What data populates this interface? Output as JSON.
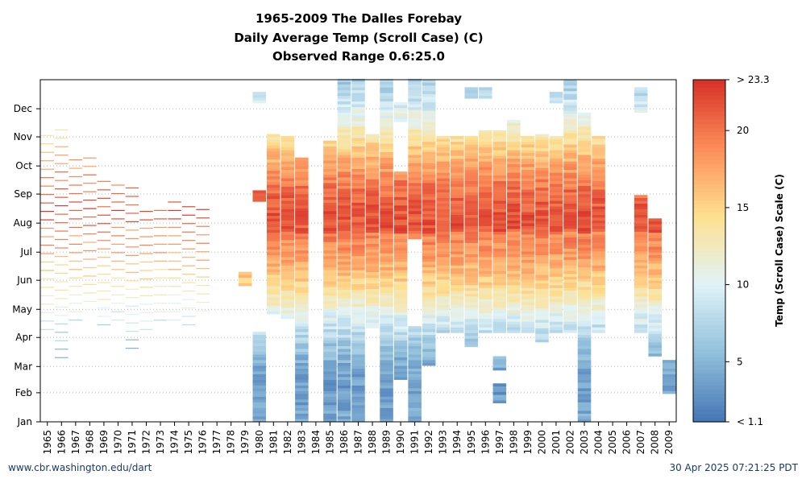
{
  "chart_data": {
    "type": "heatmap",
    "title_lines": [
      "1965-2009 The Dalles Forebay",
      "Daily Average Temp (Scroll Case) (C)",
      "Observed Range 0.6:25.0"
    ],
    "xlabel": "",
    "ylabel": "",
    "x_categories": [
      "1965",
      "1966",
      "1967",
      "1968",
      "1969",
      "1970",
      "1971",
      "1972",
      "1973",
      "1974",
      "1975",
      "1976",
      "1977",
      "1978",
      "1979",
      "1980",
      "1981",
      "1982",
      "1983",
      "1984",
      "1985",
      "1986",
      "1987",
      "1988",
      "1989",
      "1990",
      "1991",
      "1992",
      "1993",
      "1994",
      "1995",
      "1996",
      "1997",
      "1998",
      "1999",
      "2000",
      "2001",
      "2002",
      "2003",
      "2004",
      "2005",
      "2006",
      "2007",
      "2008",
      "2009"
    ],
    "y_ticks": [
      "Jan",
      "Feb",
      "Mar",
      "Apr",
      "May",
      "Jun",
      "Jul",
      "Aug",
      "Sep",
      "Oct",
      "Nov",
      "Dec"
    ],
    "colorbar": {
      "title": "Temp (Scroll Case) Scale (C)",
      "range": [
        1.1,
        23.3
      ],
      "tick_labels": [
        "> 23.3",
        "20",
        "15",
        "10",
        "5",
        "< 1.1"
      ],
      "tick_values": [
        23.3,
        20,
        15,
        10,
        5,
        1.1
      ],
      "colors": [
        "#4575b4",
        "#91bfdb",
        "#e0f3f8",
        "#fee090",
        "#fc8d59",
        "#d73027"
      ]
    },
    "grid": true,
    "year_coverage_days": [
      {
        "year": "1965",
        "segments": [
          [
            90,
            300
          ]
        ],
        "mode": "sparse"
      },
      {
        "year": "1966",
        "segments": [
          [
            60,
            310
          ]
        ],
        "mode": "sparse"
      },
      {
        "year": "1967",
        "segments": [
          [
            100,
            280
          ]
        ],
        "mode": "sparse"
      },
      {
        "year": "1968",
        "segments": [
          [
            120,
            275
          ]
        ],
        "mode": "sparse"
      },
      {
        "year": "1969",
        "segments": [
          [
            95,
            250
          ]
        ],
        "mode": "sparse"
      },
      {
        "year": "1970",
        "segments": [
          [
            100,
            250
          ]
        ],
        "mode": "sparse"
      },
      {
        "year": "1971",
        "segments": [
          [
            70,
            250
          ]
        ],
        "mode": "sparse"
      },
      {
        "year": "1972",
        "segments": [
          [
            90,
            225
          ]
        ],
        "mode": "sparse"
      },
      {
        "year": "1973",
        "segments": [
          [
            100,
            225
          ]
        ],
        "mode": "sparse"
      },
      {
        "year": "1974",
        "segments": [
          [
            100,
            235
          ]
        ],
        "mode": "sparse"
      },
      {
        "year": "1975",
        "segments": [
          [
            95,
            225
          ]
        ],
        "mode": "sparse"
      },
      {
        "year": "1976",
        "segments": [
          [
            110,
            225
          ]
        ],
        "mode": "sparse"
      },
      {
        "year": "1979",
        "segments": [
          [
            145,
            160
          ]
        ],
        "mode": "full"
      },
      {
        "year": "1980",
        "segments": [
          [
            0,
            95
          ],
          [
            235,
            245
          ],
          [
            340,
            350
          ]
        ],
        "mode": "full"
      },
      {
        "year": "1981",
        "segments": [
          [
            115,
            305
          ]
        ],
        "mode": "full"
      },
      {
        "year": "1982",
        "segments": [
          [
            110,
            305
          ]
        ],
        "mode": "full"
      },
      {
        "year": "1983",
        "segments": [
          [
            0,
            280
          ]
        ],
        "mode": "full"
      },
      {
        "year": "1985",
        "segments": [
          [
            0,
            300
          ]
        ],
        "mode": "full"
      },
      {
        "year": "1986",
        "segments": [
          [
            0,
            365
          ]
        ],
        "mode": "full"
      },
      {
        "year": "1987",
        "segments": [
          [
            0,
            365
          ]
        ],
        "mode": "full"
      },
      {
        "year": "1988",
        "segments": [
          [
            100,
            305
          ]
        ],
        "mode": "full"
      },
      {
        "year": "1989",
        "segments": [
          [
            0,
            365
          ]
        ],
        "mode": "full"
      },
      {
        "year": "1990",
        "segments": [
          [
            45,
            265
          ],
          [
            320,
            340
          ]
        ],
        "mode": "full"
      },
      {
        "year": "1991",
        "segments": [
          [
            0,
            100
          ],
          [
            195,
            365
          ]
        ],
        "mode": "full"
      },
      {
        "year": "1992",
        "segments": [
          [
            60,
            300
          ],
          [
            290,
            365
          ]
        ],
        "mode": "full"
      },
      {
        "year": "1993",
        "segments": [
          [
            95,
            305
          ]
        ],
        "mode": "full"
      },
      {
        "year": "1994",
        "segments": [
          [
            95,
            305
          ]
        ],
        "mode": "full"
      },
      {
        "year": "1995",
        "segments": [
          [
            80,
            305
          ],
          [
            345,
            355
          ]
        ],
        "mode": "full"
      },
      {
        "year": "1996",
        "segments": [
          [
            95,
            310
          ],
          [
            345,
            355
          ]
        ],
        "mode": "full"
      },
      {
        "year": "1997",
        "segments": [
          [
            20,
            40
          ],
          [
            55,
            70
          ],
          [
            95,
            310
          ]
        ],
        "mode": "full"
      },
      {
        "year": "1998",
        "segments": [
          [
            95,
            310
          ],
          [
            310,
            320
          ]
        ],
        "mode": "full"
      },
      {
        "year": "1999",
        "segments": [
          [
            95,
            305
          ]
        ],
        "mode": "full"
      },
      {
        "year": "2000",
        "segments": [
          [
            85,
            305
          ]
        ],
        "mode": "full"
      },
      {
        "year": "2001",
        "segments": [
          [
            95,
            305
          ],
          [
            340,
            350
          ]
        ],
        "mode": "full"
      },
      {
        "year": "2002",
        "segments": [
          [
            95,
            365
          ]
        ],
        "mode": "full"
      },
      {
        "year": "2003",
        "segments": [
          [
            0,
            330
          ]
        ],
        "mode": "full"
      },
      {
        "year": "2004",
        "segments": [
          [
            95,
            305
          ]
        ],
        "mode": "full"
      },
      {
        "year": "2007",
        "segments": [
          [
            95,
            240
          ],
          [
            330,
            355
          ]
        ],
        "mode": "full"
      },
      {
        "year": "2008",
        "segments": [
          [
            70,
            215
          ]
        ],
        "mode": "full"
      },
      {
        "year": "2009",
        "segments": [
          [
            30,
            65
          ]
        ],
        "mode": "full"
      }
    ]
  },
  "footer": {
    "left": "www.cbr.washington.edu/dart",
    "right": "30 Apr 2025 07:21:25 PDT"
  }
}
